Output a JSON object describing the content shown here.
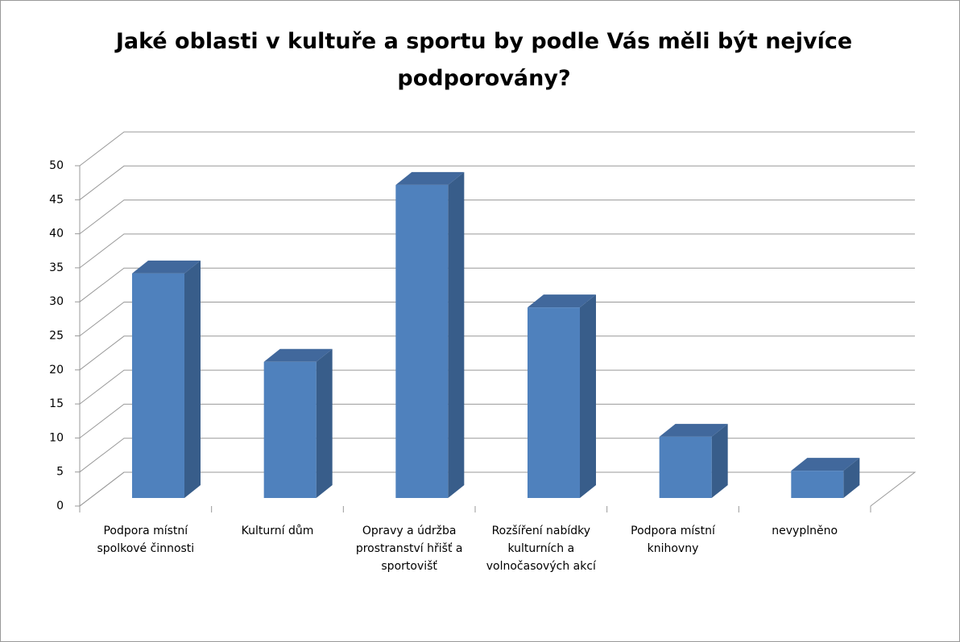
{
  "chart_data": {
    "type": "bar3d",
    "title": "Jaké oblasti v kultuře a sportu by podle Vás měli být nejvíce podporovány?",
    "categories": [
      "Podpora místní spolkové činnosti",
      "Kulturní dům",
      "Opravy a údržba prostranství hřišť a sportovišť",
      "Rozšíření nabídky kulturních a volnočasových akcí",
      "Podpora místní knihovny",
      "nevyplněno"
    ],
    "values": [
      33,
      20,
      46,
      28,
      9,
      4
    ],
    "color": "#4f81bd",
    "ylim": [
      0,
      50
    ],
    "yticks": [
      0,
      5,
      10,
      15,
      20,
      25,
      30,
      35,
      40,
      45,
      50
    ],
    "grid": true
  }
}
